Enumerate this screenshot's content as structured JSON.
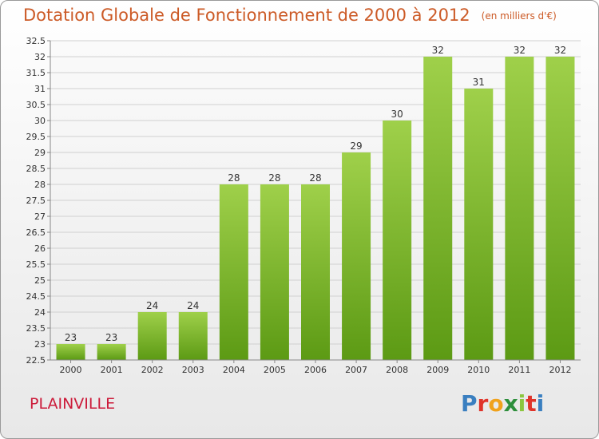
{
  "header": {
    "title": "Dotation Globale de Fonctionnement de 2000 à 2012",
    "unit": "(en milliers d'€)"
  },
  "commune": "PLAINVILLE",
  "brand": {
    "name": "Proxiti",
    "letters": [
      "P",
      "r",
      "o",
      "x",
      "i",
      "t",
      "i"
    ],
    "colors": [
      "#3a7fc0",
      "#e0342a",
      "#f0a21c",
      "#2e8f3c",
      "#8cc63f",
      "#e0342a",
      "#3a7fc0"
    ]
  },
  "colors": {
    "bar_light": "#9fd04a",
    "bar_dark": "#5c9a14",
    "grid": "#d0d0d0",
    "axis": "#888888",
    "label": "#333333"
  },
  "chart_data": {
    "type": "bar",
    "title": "Dotation Globale de Fonctionnement de 2000 à 2012",
    "subtitle": "(en milliers d'€)",
    "categories": [
      "2000",
      "2001",
      "2002",
      "2003",
      "2004",
      "2005",
      "2006",
      "2007",
      "2008",
      "2009",
      "2010",
      "2011",
      "2012"
    ],
    "values": [
      23,
      23,
      24,
      24,
      28,
      28,
      28,
      29,
      30,
      32,
      31,
      32,
      32
    ],
    "ylim": [
      22.5,
      32.5
    ],
    "yticks": [
      "22.5",
      "23",
      "23.5",
      "24",
      "24.5",
      "25",
      "25.5",
      "26",
      "26.5",
      "27",
      "27.5",
      "28",
      "28.5",
      "29",
      "29.5",
      "30",
      "30.5",
      "31",
      "31.5",
      "32",
      "32.5"
    ],
    "grid": true,
    "xlabel": "",
    "ylabel": ""
  }
}
